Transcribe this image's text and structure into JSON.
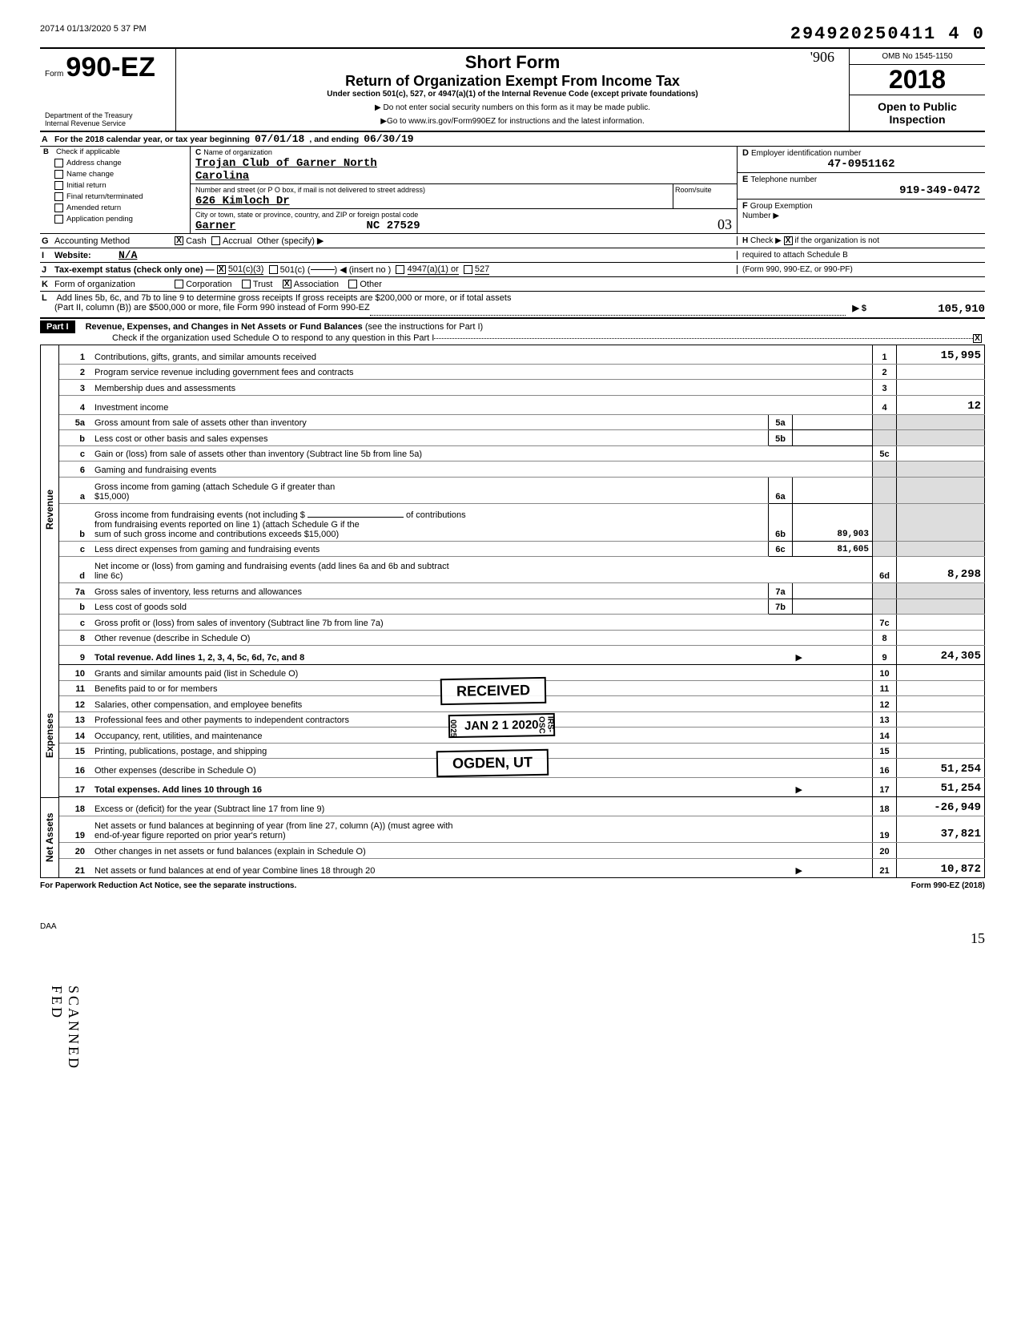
{
  "doc_stamp_top": "20714 01/13/2020 5 37 PM",
  "header_num": "294920250411 4  0",
  "form": {
    "prefix": "Form",
    "name": "990-EZ"
  },
  "title1": "Short Form",
  "title2": "Return of Organization Exempt From Income Tax",
  "subtitle": "Under section 501(c), 527, or 4947(a)(1) of the Internal Revenue Code (except private foundations)",
  "instr1": "▶ Do not enter social security numbers on this form as it may be made public.",
  "instr2": "▶Go to www.irs.gov/Form990EZ for instructions and the latest information.",
  "handwritten_top": "'906",
  "omb": "OMB No 1545-1150",
  "year": "2018",
  "open": "Open to Public Inspection",
  "dept1": "Department of the Treasury",
  "dept2": "Internal Revenue Service",
  "lineA": {
    "label": "A",
    "text": "For the 2018 calendar year, or tax year beginning",
    "begin": "07/01/18",
    "mid": ", and ending",
    "end": "06/30/19"
  },
  "lineB": {
    "label": "B",
    "text": "Check if applicable"
  },
  "checkboxes": [
    "Address change",
    "Name change",
    "Initial return",
    "Final return/terminated",
    "Amended return",
    "Application pending"
  ],
  "C": {
    "label": "C",
    "text": "Name of organization",
    "name": "Trojan Club of Garner North",
    "name2": "Carolina",
    "street_label": "Number and street (or P O  box, if mail is not delivered to street address)",
    "street": "626 Kimloch Dr",
    "city_label": "City or town, state or province, country, and ZIP or foreign postal code",
    "city": "Garner",
    "statezip": "NC  27529",
    "room_label": "Room/suite"
  },
  "D": {
    "label": "D",
    "text": "Employer identification number",
    "val": "47-0951162"
  },
  "E": {
    "label": "E",
    "text": "Telephone number",
    "val": "919-349-0472"
  },
  "F": {
    "label": "F",
    "text": "Group Exemption",
    "text2": "Number  ▶"
  },
  "G": {
    "label": "G",
    "text": "Accounting Method",
    "cash": "Cash",
    "accrual": "Accrual",
    "other": "Other (specify) ▶"
  },
  "H": {
    "label": "H",
    "text": "Check ▶",
    "text2": "if the organization is not",
    "text3": "required to attach Schedule B",
    "text4": "(Form 990, 990-EZ, or 990-PF)"
  },
  "I": {
    "label": "I",
    "text": "Website:",
    "val": "N/A"
  },
  "J": {
    "label": "J",
    "text": "Tax-exempt status (check only one) —",
    "a": "501(c)(3)",
    "b": "501(c) (",
    "b2": ")  ◀ (insert no )",
    "c": "4947(a)(1) or",
    "d": "527"
  },
  "K": {
    "label": "K",
    "text": "Form of organization",
    "a": "Corporation",
    "b": "Trust",
    "c": "Association",
    "d": "Other"
  },
  "L": {
    "label": "L",
    "text": "Add lines 5b, 6c, and 7b to line 9 to determine gross receipts  If gross receipts are $200,000 or more, or if total assets",
    "text2": "(Part II, column (B)) are $500,000 or more, file Form 990 instead of Form 990-EZ",
    "arrow": "▶  $",
    "val": "105,910"
  },
  "part1": {
    "label": "Part I",
    "title": "Revenue, Expenses, and Changes in Net Assets or Fund Balances",
    "note": "(see the instructions for Part I)",
    "check": "Check if the organization used Schedule O to respond to any question in this Part I"
  },
  "sections": {
    "rev": "Revenue",
    "exp": "Expenses",
    "net": "Net Assets"
  },
  "lines": {
    "1": {
      "t": "Contributions, gifts, grants, and similar amounts received",
      "v": "15,995"
    },
    "2": {
      "t": "Program service revenue including government fees and contracts",
      "v": ""
    },
    "3": {
      "t": "Membership dues and assessments",
      "v": ""
    },
    "4": {
      "t": "Investment income",
      "v": "12"
    },
    "5a": {
      "t": "Gross amount from sale of assets other than inventory",
      "mn": "5a",
      "mv": ""
    },
    "5b": {
      "t": "Less  cost or other basis and sales expenses",
      "mn": "5b",
      "mv": ""
    },
    "5c": {
      "t": "Gain or (loss) from sale of assets other than inventory (Subtract line 5b from line 5a)",
      "n": "5c",
      "v": ""
    },
    "6": {
      "t": "Gaming and fundraising events"
    },
    "6a": {
      "t": "Gross income from gaming (attach Schedule G if greater than",
      "t2": "$15,000)",
      "mn": "6a",
      "mv": ""
    },
    "6b": {
      "t": "Gross income from fundraising events (not including $",
      "t2": "of contributions",
      "t3": "from fundraising events reported on line 1) (attach Schedule G if the",
      "t4": "sum of such gross income and contributions exceeds $15,000)",
      "mn": "6b",
      "mv": "89,903"
    },
    "6c": {
      "t": "Less  direct expenses from gaming and fundraising events",
      "mn": "6c",
      "mv": "81,605"
    },
    "6d": {
      "t": "Net income or (loss) from gaming and fundraising events (add lines 6a and 6b and subtract",
      "t2": "line 6c)",
      "n": "6d",
      "v": "8,298"
    },
    "7a": {
      "t": "Gross sales of inventory, less returns and allowances",
      "mn": "7a",
      "mv": ""
    },
    "7b": {
      "t": "Less  cost of goods sold",
      "mn": "7b",
      "mv": ""
    },
    "7c": {
      "t": "Gross profit or (loss) from sales of inventory (Subtract line 7b from line 7a)",
      "n": "7c",
      "v": ""
    },
    "8": {
      "t": "Other revenue (describe in Schedule O)",
      "n": "8",
      "v": ""
    },
    "9": {
      "t": "Total revenue. Add lines 1, 2, 3, 4, 5c, 6d, 7c, and 8",
      "n": "9",
      "v": "24,305",
      "bold": true,
      "arrow": true
    },
    "10": {
      "t": "Grants and similar amounts paid (list in Schedule O)",
      "n": "10",
      "v": ""
    },
    "11": {
      "t": "Benefits paid to or for members",
      "n": "11",
      "v": ""
    },
    "12": {
      "t": "Salaries, other compensation, and employee benefits",
      "n": "12",
      "v": ""
    },
    "13": {
      "t": "Professional fees and other payments to independent contractors",
      "n": "13",
      "v": ""
    },
    "14": {
      "t": "Occupancy, rent, utilities, and maintenance",
      "n": "14",
      "v": ""
    },
    "15": {
      "t": "Printing, publications, postage, and shipping",
      "n": "15",
      "v": ""
    },
    "16": {
      "t": "Other expenses (describe in Schedule O)",
      "n": "16",
      "v": "51,254"
    },
    "17": {
      "t": "Total expenses. Add lines 10 through 16",
      "n": "17",
      "v": "51,254",
      "bold": true,
      "arrow": true
    },
    "18": {
      "t": "Excess or (deficit) for the year (Subtract line 17 from line 9)",
      "n": "18",
      "v": "-26,949"
    },
    "19": {
      "t": "Net assets or fund balances at beginning of year (from line 27, column (A)) (must agree with",
      "t2": "end-of-year figure reported on prior year's return)",
      "n": "19",
      "v": "37,821"
    },
    "20": {
      "t": "Other changes in net assets or fund balances (explain in Schedule O)",
      "n": "20",
      "v": ""
    },
    "21": {
      "t": "Net assets or fund balances at end of year  Combine lines 18 through 20",
      "n": "21",
      "v": "10,872",
      "arrow": true
    }
  },
  "stamps": {
    "received": "RECEIVED",
    "date": "JAN 2 1 2020",
    "ogden": "OGDEN, UT",
    "side1": "0025",
    "side2": "IRS-OSC"
  },
  "footer": {
    "left": "For Paperwork Reduction Act Notice, see the separate instructions.",
    "daa": "DAA",
    "right": "Form 990-EZ (2018)"
  },
  "scanned": "SCANNED  FED",
  "page_corner": "15",
  "hand_check": "03"
}
